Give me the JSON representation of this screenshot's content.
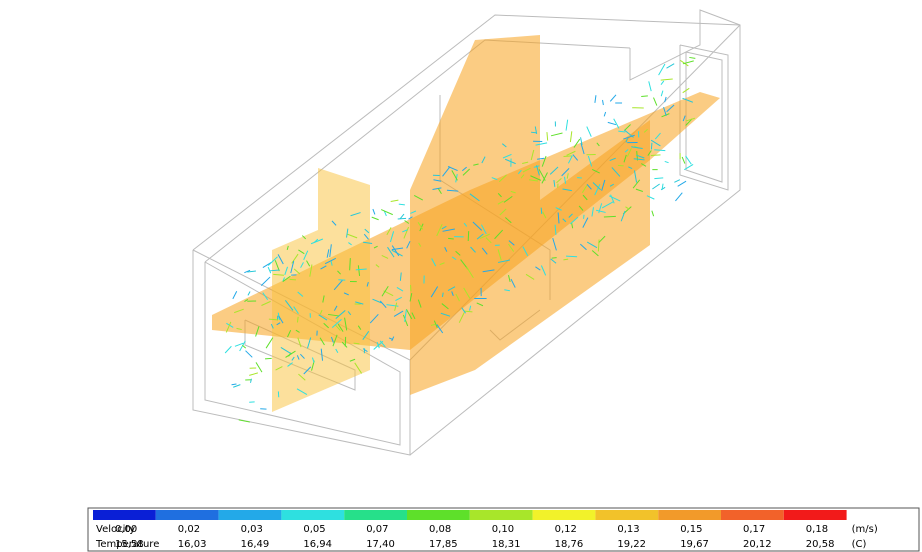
{
  "legend": {
    "colors": [
      "#0a1fd6",
      "#1f6fe0",
      "#23a9e8",
      "#2ee0e0",
      "#26e08a",
      "#5ee02a",
      "#a8e62a",
      "#f2f22a",
      "#f2c22a",
      "#f29a2a",
      "#f2622a",
      "#f21a1a"
    ],
    "rows": [
      {
        "label": "Velocity",
        "values": [
          "0,00",
          "0,02",
          "0,03",
          "0,05",
          "0,07",
          "0,08",
          "0,10",
          "0,12",
          "0,13",
          "0,15",
          "0,17",
          "0,18"
        ],
        "unit": "(m/s)"
      },
      {
        "label": "Temperature",
        "values": [
          "15,58",
          "16,03",
          "16,49",
          "16,94",
          "17,40",
          "17,85",
          "18,31",
          "18,76",
          "19,22",
          "19,67",
          "20,12",
          "20,58"
        ],
        "unit": "(C)"
      }
    ]
  }
}
